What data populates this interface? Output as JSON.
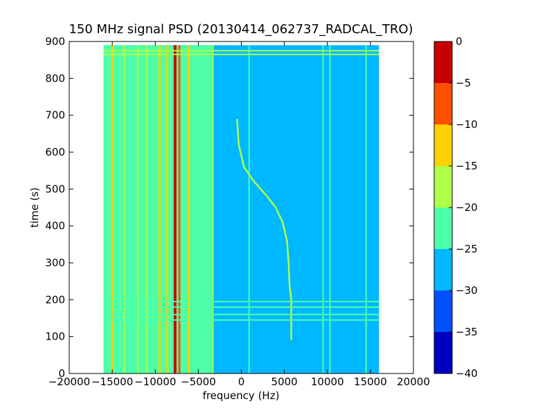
{
  "chart_data": {
    "type": "heatmap",
    "title": "150 MHz signal PSD (20130414_062737_RADCAL_TRO)",
    "xlabel": "frequency (Hz)",
    "ylabel": "time (s)",
    "xlim": [
      -20000,
      20000
    ],
    "ylim": [
      0,
      900
    ],
    "data_extent": {
      "freq": [
        -16000,
        16000
      ],
      "time": [
        0,
        890
      ]
    },
    "x_ticks": [
      -20000,
      -15000,
      -10000,
      -5000,
      0,
      5000,
      10000,
      15000,
      20000
    ],
    "x_tick_labels": [
      "−20000",
      "−15000",
      "−10000",
      "−5000",
      "0",
      "5000",
      "10000",
      "15000",
      "20000"
    ],
    "y_ticks": [
      0,
      100,
      200,
      300,
      400,
      500,
      600,
      700,
      800,
      900
    ],
    "y_tick_labels": [
      "0",
      "100",
      "200",
      "300",
      "400",
      "500",
      "600",
      "700",
      "800",
      "900"
    ],
    "colorbar": {
      "levels": [
        -40,
        -35,
        -30,
        -25,
        -20,
        -15,
        -10,
        -5,
        0
      ],
      "tick_labels": [
        "−40",
        "−35",
        "−30",
        "−25",
        "−20",
        "−15",
        "−10",
        "−5",
        "0"
      ],
      "colors": [
        "#0000c0",
        "#0050ff",
        "#00b8ff",
        "#4cffa8",
        "#b0ff48",
        "#ffd000",
        "#ff5000",
        "#c80000"
      ]
    },
    "background_level": -27.5,
    "strong_band": {
      "freq_range": [
        -16000,
        -3300
      ],
      "level": -22.5
    },
    "vertical_lines": [
      {
        "freq": -15000,
        "level": -12.5
      },
      {
        "freq": -13600,
        "level": -17.5
      },
      {
        "freq": -12000,
        "level": -17.5
      },
      {
        "freq": -11000,
        "level": -17.5
      },
      {
        "freq": -9500,
        "level": -12.5
      },
      {
        "freq": -8600,
        "level": -12.5
      },
      {
        "freq": -7700,
        "level": -2.5
      },
      {
        "freq": -7200,
        "level": -7.5
      },
      {
        "freq": -6100,
        "level": -12.5
      },
      {
        "freq": -3300,
        "level": -17.5
      },
      {
        "freq": 900,
        "level": -22.5
      },
      {
        "freq": 9500,
        "level": -22.5
      },
      {
        "freq": 10300,
        "level": -22.5
      },
      {
        "freq": 14500,
        "level": -22.5
      }
    ],
    "horizontal_lines": [
      {
        "time": 865,
        "level": -17.5
      },
      {
        "time": 875,
        "level": -17.5
      },
      {
        "time": 195,
        "level": -22.5
      },
      {
        "time": 180,
        "level": -22.5
      },
      {
        "time": 160,
        "level": -22.5
      },
      {
        "time": 145,
        "level": -22.5
      }
    ],
    "signal_track": {
      "level": -17.5,
      "points": [
        [
          5800,
          90
        ],
        [
          5800,
          200
        ],
        [
          5600,
          240
        ],
        [
          5500,
          300
        ],
        [
          5300,
          360
        ],
        [
          4800,
          410
        ],
        [
          4000,
          450
        ],
        [
          3000,
          480
        ],
        [
          1500,
          520
        ],
        [
          300,
          560
        ],
        [
          -300,
          620
        ],
        [
          -500,
          690
        ]
      ]
    }
  }
}
